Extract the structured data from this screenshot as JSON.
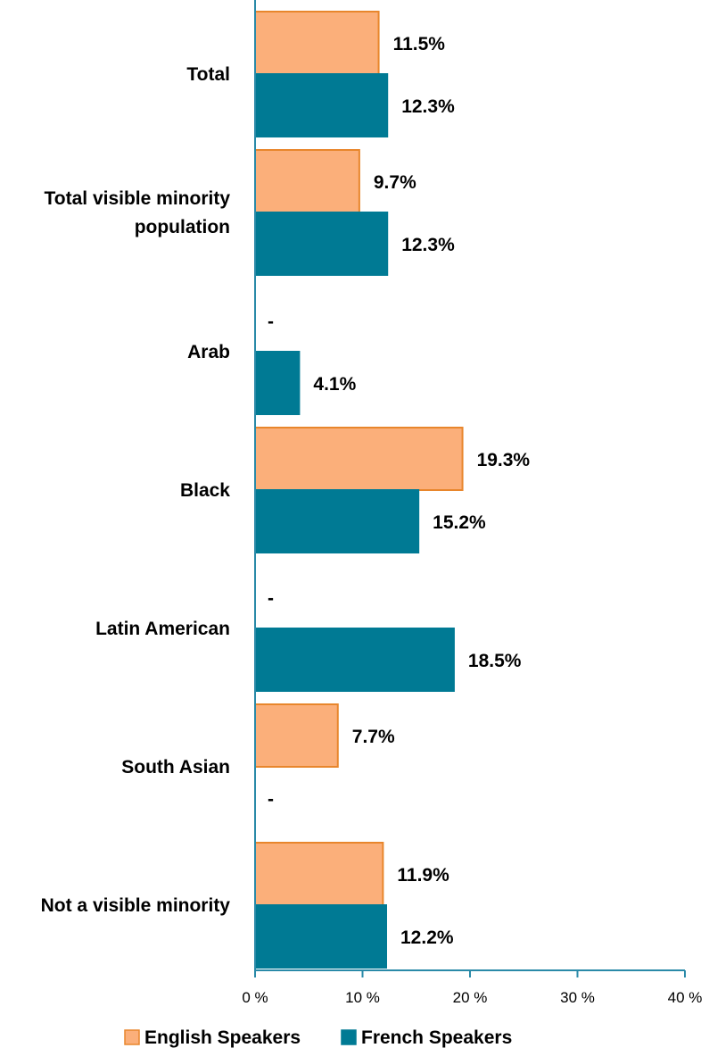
{
  "chart_data": {
    "type": "bar",
    "orientation": "horizontal",
    "categories": [
      [
        "Total"
      ],
      [
        "Total visible minority",
        "population"
      ],
      [
        "Arab"
      ],
      [
        "Black"
      ],
      [
        "Latin American"
      ],
      [
        "South Asian"
      ],
      [
        "Not a visible minority"
      ]
    ],
    "series": [
      {
        "name": "English Speakers",
        "color": "#fbaf7a",
        "border": "#e8862c",
        "values": [
          11.5,
          9.7,
          null,
          19.3,
          null,
          7.7,
          11.9
        ],
        "labels": [
          "11.5%",
          "9.7%",
          "-",
          "19.3%",
          "-",
          "7.7%",
          "11.9%"
        ]
      },
      {
        "name": "French Speakers",
        "color": "#007a94",
        "border": "#007a94",
        "values": [
          12.3,
          12.3,
          4.1,
          15.2,
          18.5,
          null,
          12.2
        ],
        "labels": [
          "12.3%",
          "12.3%",
          "4.1%",
          "15.2%",
          "18.5%",
          "-",
          "12.2%"
        ]
      }
    ],
    "xlim": [
      0,
      40
    ],
    "ticks": [
      0,
      10,
      20,
      30,
      40
    ],
    "tick_labels": [
      "0 %",
      "10 %",
      "20 %",
      "30 %",
      "40 %"
    ],
    "axis_color": "#2a8aa8",
    "grid": false,
    "legend_position": "bottom"
  }
}
